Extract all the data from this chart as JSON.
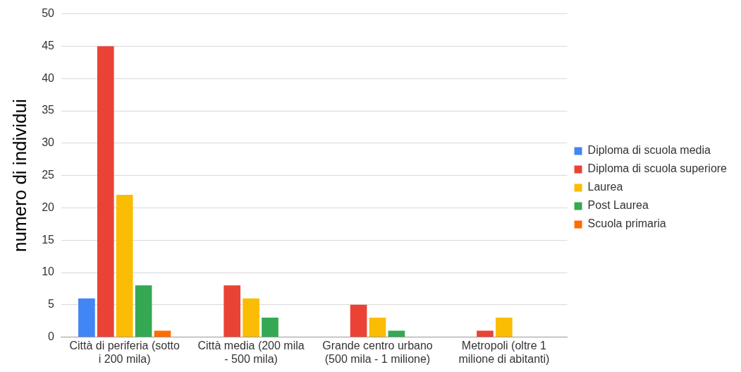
{
  "chart_data": {
    "type": "bar",
    "ylabel": "numero di individui",
    "categories": [
      "Città di periferia (sotto i 200 mila)",
      "Città media (200 mila - 500 mila)",
      "Grande centro urbano (500 mila - 1 milione)",
      "Metropoli (oltre 1 milione di abitanti)"
    ],
    "series": [
      {
        "name": "Diploma di scuola media",
        "color": "#4285f4",
        "values": [
          6,
          null,
          null,
          null
        ]
      },
      {
        "name": "Diploma di scuola superiore",
        "color": "#ea4335",
        "values": [
          45,
          8,
          5,
          1
        ]
      },
      {
        "name": "Laurea",
        "color": "#fbbc04",
        "values": [
          22,
          6,
          3,
          3
        ]
      },
      {
        "name": "Post Laurea",
        "color": "#34a853",
        "values": [
          8,
          3,
          1,
          null
        ]
      },
      {
        "name": "Scuola primaria",
        "color": "#ff6d01",
        "values": [
          1,
          null,
          null,
          null
        ]
      }
    ],
    "ylim": [
      0,
      50
    ],
    "yticks": [
      0,
      5,
      10,
      15,
      20,
      25,
      30,
      35,
      40,
      45,
      50
    ],
    "grid": "y",
    "legend": "right"
  }
}
